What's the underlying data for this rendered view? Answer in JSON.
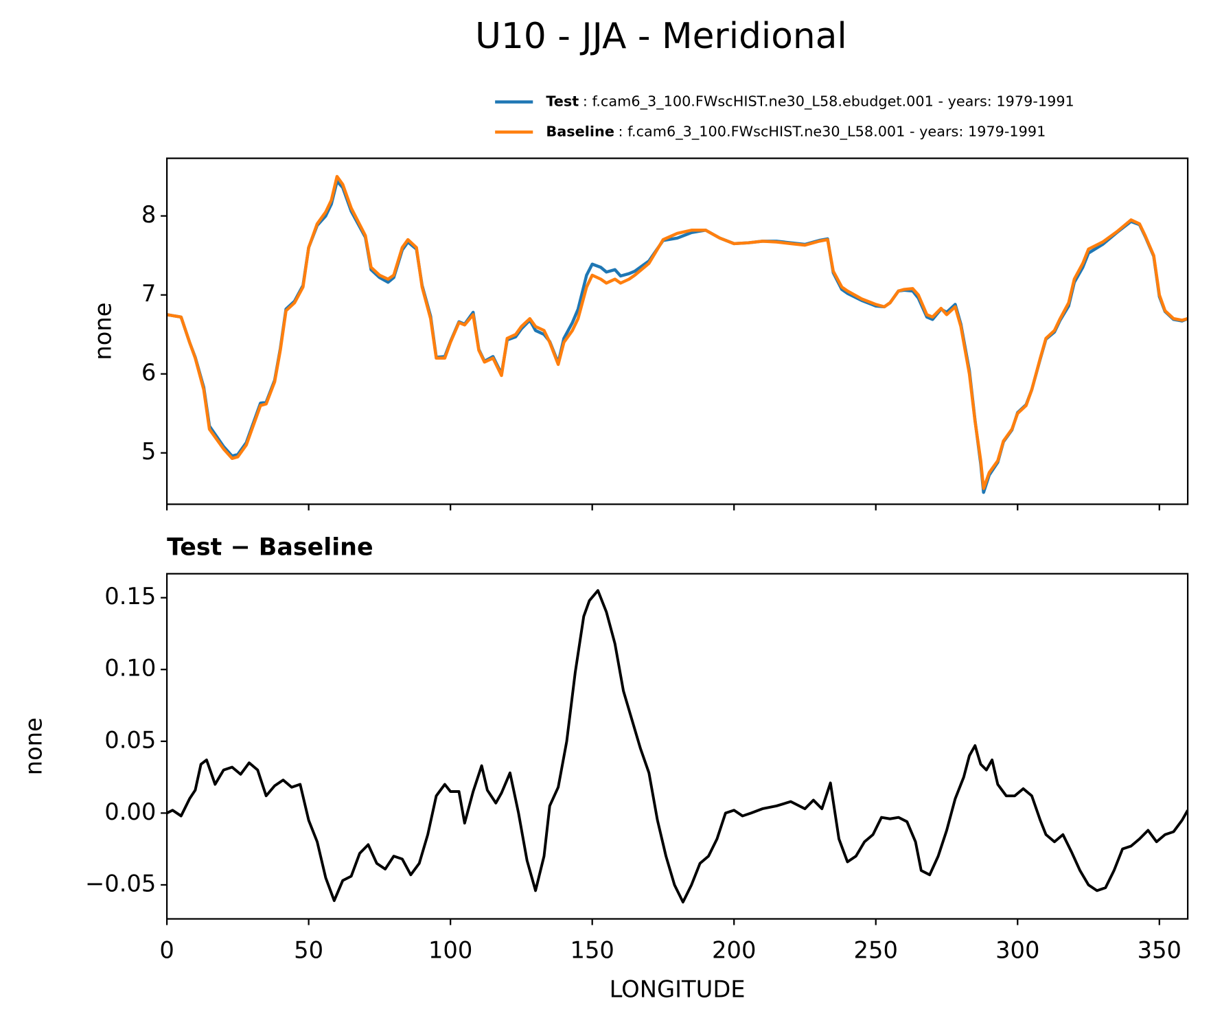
{
  "title": "U10 - JJA - Meridional",
  "chart_data": [
    {
      "type": "line",
      "ylabel": "none",
      "legend": "upper right",
      "xlim": [
        0,
        360
      ],
      "xticks": [
        0,
        50,
        100,
        150,
        200,
        250,
        300,
        350
      ],
      "xtick_labels": false,
      "ylim": [
        4.35,
        8.73
      ],
      "yticks": [
        5,
        6,
        7,
        8
      ],
      "x": [
        0,
        5,
        8,
        10,
        13,
        15,
        20,
        23,
        25,
        28,
        30,
        33,
        35,
        38,
        40,
        42,
        45,
        48,
        50,
        53,
        56,
        58,
        60,
        62,
        65,
        70,
        72,
        75,
        78,
        80,
        83,
        85,
        88,
        90,
        93,
        95,
        98,
        100,
        103,
        105,
        108,
        110,
        112,
        115,
        118,
        120,
        123,
        125,
        128,
        130,
        133,
        135,
        138,
        140,
        143,
        145,
        148,
        150,
        153,
        155,
        158,
        160,
        163,
        165,
        170,
        175,
        180,
        185,
        190,
        195,
        200,
        205,
        210,
        215,
        220,
        225,
        230,
        233,
        235,
        238,
        240,
        245,
        250,
        253,
        255,
        258,
        260,
        263,
        265,
        268,
        270,
        273,
        275,
        278,
        280,
        283,
        285,
        287,
        288,
        290,
        293,
        295,
        298,
        300,
        303,
        305,
        308,
        310,
        313,
        315,
        318,
        320,
        323,
        325,
        330,
        335,
        340,
        343,
        345,
        348,
        350,
        352,
        355,
        358,
        360
      ],
      "series": [
        {
          "name": "Test",
          "description": ": f.cam6_3_100.FWscHIST.ne30_L58.ebudget.001 - years: 1979-1991",
          "color": "#1f77b4",
          "values": [
            6.75,
            6.72,
            6.4,
            6.21,
            5.83,
            5.34,
            5.08,
            4.96,
            4.98,
            5.13,
            5.33,
            5.63,
            5.64,
            5.92,
            6.32,
            6.82,
            6.92,
            7.12,
            7.6,
            7.88,
            8.0,
            8.15,
            8.44,
            8.36,
            8.06,
            7.73,
            7.32,
            7.22,
            7.16,
            7.22,
            7.57,
            7.67,
            7.58,
            7.12,
            6.73,
            6.21,
            6.22,
            6.41,
            6.66,
            6.63,
            6.78,
            6.31,
            6.16,
            6.22,
            6.0,
            6.43,
            6.47,
            6.57,
            6.68,
            6.55,
            6.5,
            6.41,
            6.14,
            6.45,
            6.65,
            6.82,
            7.25,
            7.39,
            7.35,
            7.29,
            7.32,
            7.24,
            7.27,
            7.3,
            7.43,
            7.69,
            7.72,
            7.79,
            7.82,
            7.72,
            7.65,
            7.66,
            7.68,
            7.68,
            7.66,
            7.64,
            7.69,
            7.71,
            7.28,
            7.07,
            7.02,
            6.93,
            6.86,
            6.85,
            6.9,
            7.05,
            7.06,
            7.05,
            6.96,
            6.72,
            6.69,
            6.82,
            6.78,
            6.88,
            6.63,
            6.04,
            5.41,
            4.86,
            4.5,
            4.72,
            4.88,
            5.14,
            5.29,
            5.51,
            5.61,
            5.8,
            6.19,
            6.44,
            6.53,
            6.68,
            6.86,
            7.16,
            7.35,
            7.53,
            7.64,
            7.79,
            7.93,
            7.89,
            7.74,
            7.49,
            6.98,
            6.79,
            6.69,
            6.67,
            6.7
          ]
        },
        {
          "name": "Baseline",
          "description": ": f.cam6_3_100.FWscHIST.ne30_L58.001 - years: 1979-1991",
          "color": "#ff7f0e",
          "values": [
            6.75,
            6.72,
            6.4,
            6.2,
            5.8,
            5.3,
            5.05,
            4.93,
            4.95,
            5.1,
            5.3,
            5.6,
            5.62,
            5.9,
            6.3,
            6.8,
            6.9,
            7.1,
            7.6,
            7.9,
            8.05,
            8.2,
            8.5,
            8.4,
            8.1,
            7.75,
            7.35,
            7.25,
            7.2,
            7.25,
            7.6,
            7.7,
            7.6,
            7.1,
            6.7,
            6.2,
            6.2,
            6.4,
            6.65,
            6.62,
            6.75,
            6.3,
            6.15,
            6.2,
            5.98,
            6.45,
            6.5,
            6.6,
            6.7,
            6.6,
            6.55,
            6.4,
            6.12,
            6.4,
            6.55,
            6.7,
            7.1,
            7.25,
            7.2,
            7.15,
            7.2,
            7.15,
            7.2,
            7.25,
            7.4,
            7.7,
            7.78,
            7.82,
            7.82,
            7.72,
            7.65,
            7.66,
            7.68,
            7.67,
            7.65,
            7.63,
            7.68,
            7.7,
            7.3,
            7.1,
            7.05,
            6.95,
            6.88,
            6.85,
            6.9,
            7.05,
            7.07,
            7.08,
            7.0,
            6.75,
            6.72,
            6.83,
            6.75,
            6.85,
            6.6,
            6.0,
            5.4,
            4.9,
            4.55,
            4.75,
            4.9,
            5.15,
            5.3,
            5.5,
            5.6,
            5.8,
            6.2,
            6.45,
            6.55,
            6.7,
            6.9,
            7.2,
            7.4,
            7.58,
            7.67,
            7.8,
            7.95,
            7.9,
            7.75,
            7.5,
            7.0,
            6.8,
            6.7,
            6.68,
            6.7
          ]
        }
      ]
    },
    {
      "type": "line",
      "title": "Test − Baseline",
      "xlabel": "LONGITUDE",
      "ylabel": "none",
      "xlim": [
        0,
        360
      ],
      "xticks": [
        0,
        50,
        100,
        150,
        200,
        250,
        300,
        350
      ],
      "ylim": [
        -0.0737,
        0.1667
      ],
      "yticks": [
        {
          "value": -0.05,
          "label": "−0.05"
        },
        {
          "value": 0,
          "label": "0.00"
        },
        0.05,
        {
          "value": 0.1,
          "label": "0.10"
        },
        0.15
      ],
      "color": "#000000",
      "x": [
        0,
        2,
        5,
        8,
        10,
        12,
        14,
        17,
        20,
        23,
        26,
        29,
        32,
        35,
        38,
        41,
        44,
        47,
        50,
        53,
        56,
        59,
        62,
        65,
        68,
        71,
        74,
        77,
        80,
        83,
        86,
        89,
        92,
        95,
        98,
        100,
        103,
        105,
        108,
        111,
        113,
        116,
        118,
        121,
        124,
        127,
        130,
        133,
        135,
        138,
        141,
        144,
        147,
        149,
        152,
        155,
        158,
        161,
        164,
        167,
        170,
        173,
        176,
        179,
        182,
        185,
        188,
        191,
        194,
        197,
        200,
        203,
        206,
        210,
        215,
        220,
        225,
        228,
        231,
        233,
        234,
        237,
        240,
        243,
        246,
        249,
        252,
        255,
        258,
        261,
        264,
        266,
        269,
        272,
        275,
        278,
        281,
        283,
        285,
        287,
        289,
        291,
        293,
        296,
        299,
        302,
        305,
        308,
        310,
        313,
        316,
        319,
        322,
        325,
        328,
        331,
        334,
        337,
        340,
        343,
        346,
        349,
        352,
        355,
        358,
        360
      ],
      "values": [
        0.0,
        0.002,
        -0.002,
        0.01,
        0.016,
        0.034,
        0.037,
        0.02,
        0.03,
        0.032,
        0.027,
        0.035,
        0.03,
        0.012,
        0.019,
        0.023,
        0.018,
        0.02,
        -0.005,
        -0.02,
        -0.045,
        -0.061,
        -0.047,
        -0.044,
        -0.028,
        -0.022,
        -0.035,
        -0.039,
        -0.03,
        -0.032,
        -0.043,
        -0.035,
        -0.015,
        0.012,
        0.02,
        0.015,
        0.015,
        -0.007,
        0.015,
        0.033,
        0.016,
        0.007,
        0.014,
        0.028,
        0.0,
        -0.033,
        -0.054,
        -0.03,
        0.005,
        0.018,
        0.05,
        0.098,
        0.137,
        0.148,
        0.155,
        0.14,
        0.118,
        0.085,
        0.065,
        0.045,
        0.028,
        -0.005,
        -0.03,
        -0.05,
        -0.062,
        -0.05,
        -0.035,
        -0.03,
        -0.018,
        0.0,
        0.002,
        -0.002,
        0.0,
        0.003,
        0.005,
        0.008,
        0.003,
        0.009,
        0.003,
        0.015,
        0.021,
        -0.018,
        -0.034,
        -0.03,
        -0.02,
        -0.015,
        -0.003,
        -0.004,
        -0.003,
        -0.006,
        -0.02,
        -0.04,
        -0.043,
        -0.03,
        -0.012,
        0.01,
        0.025,
        0.04,
        0.047,
        0.034,
        0.03,
        0.037,
        0.02,
        0.012,
        0.012,
        0.017,
        0.012,
        -0.005,
        -0.015,
        -0.02,
        -0.015,
        -0.027,
        -0.04,
        -0.05,
        -0.054,
        -0.052,
        -0.04,
        -0.025,
        -0.023,
        -0.018,
        -0.012,
        -0.02,
        -0.015,
        -0.013,
        -0.005,
        0.002
      ]
    }
  ]
}
